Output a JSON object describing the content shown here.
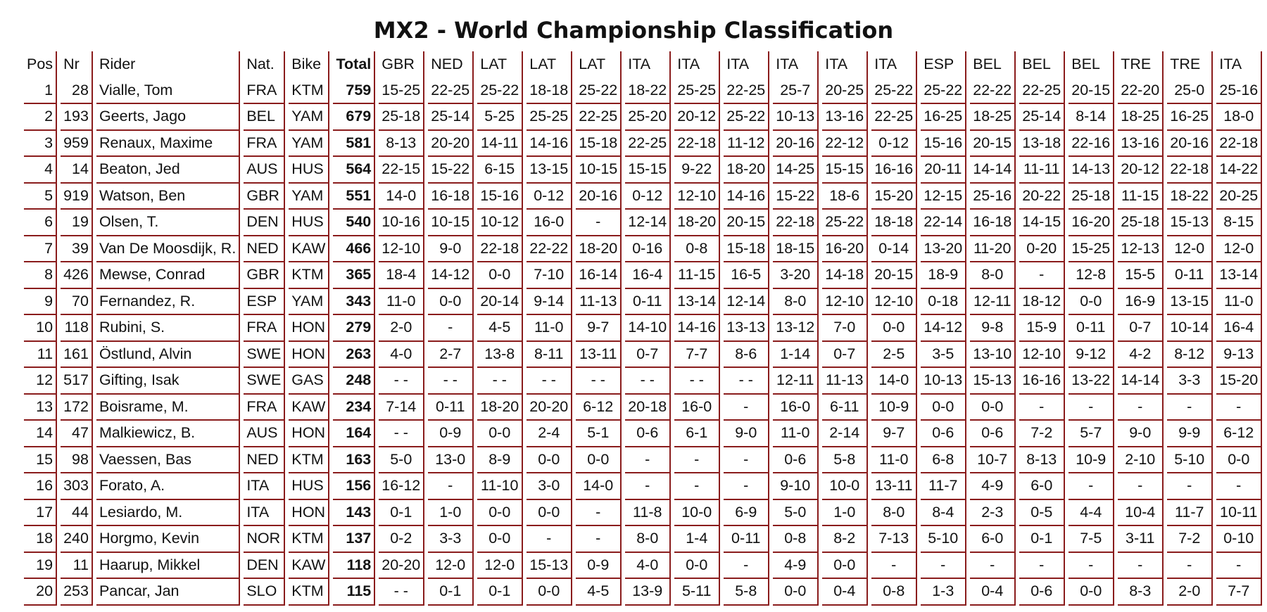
{
  "title": "MX2 - World Championship Classification",
  "accent_color": "#8a1c1c",
  "columns": [
    "Pos",
    "Nr",
    "Rider",
    "Nat.",
    "Bike",
    "Total",
    "GBR",
    "NED",
    "LAT",
    "LAT",
    "LAT",
    "ITA",
    "ITA",
    "ITA",
    "ITA",
    "ITA",
    "ITA",
    "ESP",
    "BEL",
    "BEL",
    "BEL",
    "TRE",
    "TRE",
    "ITA"
  ],
  "rows": [
    {
      "pos": "1",
      "nr": "28",
      "rider": "Vialle, Tom",
      "nat": "FRA",
      "bike": "KTM",
      "total": "759",
      "results": [
        "15-25",
        "22-25",
        "25-22",
        "18-18",
        "25-22",
        "18-22",
        "25-25",
        "22-25",
        "25-7",
        "20-25",
        "25-22",
        "25-22",
        "22-22",
        "22-25",
        "20-15",
        "22-20",
        "25-0",
        "25-16"
      ]
    },
    {
      "pos": "2",
      "nr": "193",
      "rider": "Geerts, Jago",
      "nat": "BEL",
      "bike": "YAM",
      "total": "679",
      "results": [
        "25-18",
        "25-14",
        "5-25",
        "25-25",
        "22-25",
        "25-20",
        "20-12",
        "25-22",
        "10-13",
        "13-16",
        "22-25",
        "16-25",
        "18-25",
        "25-14",
        "8-14",
        "18-25",
        "16-25",
        "18-0"
      ]
    },
    {
      "pos": "3",
      "nr": "959",
      "rider": "Renaux, Maxime",
      "nat": "FRA",
      "bike": "YAM",
      "total": "581",
      "results": [
        "8-13",
        "20-20",
        "14-11",
        "14-16",
        "15-18",
        "22-25",
        "22-18",
        "11-12",
        "20-16",
        "22-12",
        "0-12",
        "15-16",
        "20-15",
        "13-18",
        "22-16",
        "13-16",
        "20-16",
        "22-18"
      ]
    },
    {
      "pos": "4",
      "nr": "14",
      "rider": "Beaton, Jed",
      "nat": "AUS",
      "bike": "HUS",
      "total": "564",
      "results": [
        "22-15",
        "15-22",
        "6-15",
        "13-15",
        "10-15",
        "15-15",
        "9-22",
        "18-20",
        "14-25",
        "15-15",
        "16-16",
        "20-11",
        "14-14",
        "11-11",
        "14-13",
        "20-12",
        "22-18",
        "14-22"
      ]
    },
    {
      "pos": "5",
      "nr": "919",
      "rider": "Watson, Ben",
      "nat": "GBR",
      "bike": "YAM",
      "total": "551",
      "results": [
        "14-0",
        "16-18",
        "15-16",
        "0-12",
        "20-16",
        "0-12",
        "12-10",
        "14-16",
        "15-22",
        "18-6",
        "15-20",
        "12-15",
        "25-16",
        "20-22",
        "25-18",
        "11-15",
        "18-22",
        "20-25"
      ]
    },
    {
      "pos": "6",
      "nr": "19",
      "rider": "Olsen, T.",
      "nat": "DEN",
      "bike": "HUS",
      "total": "540",
      "results": [
        "10-16",
        "10-15",
        "10-12",
        "16-0",
        "-",
        "12-14",
        "18-20",
        "20-15",
        "22-18",
        "25-22",
        "18-18",
        "22-14",
        "16-18",
        "14-15",
        "16-20",
        "25-18",
        "15-13",
        "8-15"
      ]
    },
    {
      "pos": "7",
      "nr": "39",
      "rider": "Van De Moosdijk, R.",
      "nat": "NED",
      "bike": "KAW",
      "total": "466",
      "results": [
        "12-10",
        "9-0",
        "22-18",
        "22-22",
        "18-20",
        "0-16",
        "0-8",
        "15-18",
        "18-15",
        "16-20",
        "0-14",
        "13-20",
        "11-20",
        "0-20",
        "15-25",
        "12-13",
        "12-0",
        "12-0"
      ]
    },
    {
      "pos": "8",
      "nr": "426",
      "rider": "Mewse, Conrad",
      "nat": "GBR",
      "bike": "KTM",
      "total": "365",
      "results": [
        "18-4",
        "14-12",
        "0-0",
        "7-10",
        "16-14",
        "16-4",
        "11-15",
        "16-5",
        "3-20",
        "14-18",
        "20-15",
        "18-9",
        "8-0",
        "-",
        "12-8",
        "15-5",
        "0-11",
        "13-14"
      ]
    },
    {
      "pos": "9",
      "nr": "70",
      "rider": "Fernandez, R.",
      "nat": "ESP",
      "bike": "YAM",
      "total": "343",
      "results": [
        "11-0",
        "0-0",
        "20-14",
        "9-14",
        "11-13",
        "0-11",
        "13-14",
        "12-14",
        "8-0",
        "12-10",
        "12-10",
        "0-18",
        "12-11",
        "18-12",
        "0-0",
        "16-9",
        "13-15",
        "11-0"
      ]
    },
    {
      "pos": "10",
      "nr": "118",
      "rider": "Rubini, S.",
      "nat": "FRA",
      "bike": "HON",
      "total": "279",
      "results": [
        "2-0",
        "-",
        "4-5",
        "11-0",
        "9-7",
        "14-10",
        "14-16",
        "13-13",
        "13-12",
        "7-0",
        "0-0",
        "14-12",
        "9-8",
        "15-9",
        "0-11",
        "0-7",
        "10-14",
        "16-4"
      ]
    },
    {
      "pos": "11",
      "nr": "161",
      "rider": "Östlund, Alvin",
      "nat": "SWE",
      "bike": "HON",
      "total": "263",
      "results": [
        "4-0",
        "2-7",
        "13-8",
        "8-11",
        "13-11",
        "0-7",
        "7-7",
        "8-6",
        "1-14",
        "0-7",
        "2-5",
        "3-5",
        "13-10",
        "12-10",
        "9-12",
        "4-2",
        "8-12",
        "9-13"
      ]
    },
    {
      "pos": "12",
      "nr": "517",
      "rider": "Gifting, Isak",
      "nat": "SWE",
      "bike": "GAS",
      "total": "248",
      "results": [
        "- -",
        "- -",
        "- -",
        "- -",
        "- -",
        "- -",
        "- -",
        "- -",
        "12-11",
        "11-13",
        "14-0",
        "10-13",
        "15-13",
        "16-16",
        "13-22",
        "14-14",
        "3-3",
        "15-20"
      ]
    },
    {
      "pos": "13",
      "nr": "172",
      "rider": "Boisrame, M.",
      "nat": "FRA",
      "bike": "KAW",
      "total": "234",
      "results": [
        "7-14",
        "0-11",
        "18-20",
        "20-20",
        "6-12",
        "20-18",
        "16-0",
        "-",
        "16-0",
        "6-11",
        "10-9",
        "0-0",
        "0-0",
        "-",
        "-",
        "-",
        "-",
        "-"
      ]
    },
    {
      "pos": "14",
      "nr": "47",
      "rider": "Malkiewicz, B.",
      "nat": "AUS",
      "bike": "HON",
      "total": "164",
      "results": [
        "- -",
        "0-9",
        "0-0",
        "2-4",
        "5-1",
        "0-6",
        "6-1",
        "9-0",
        "11-0",
        "2-14",
        "9-7",
        "0-6",
        "0-6",
        "7-2",
        "5-7",
        "9-0",
        "9-9",
        "6-12"
      ]
    },
    {
      "pos": "15",
      "nr": "98",
      "rider": "Vaessen, Bas",
      "nat": "NED",
      "bike": "KTM",
      "total": "163",
      "results": [
        "5-0",
        "13-0",
        "8-9",
        "0-0",
        "0-0",
        "-",
        "-",
        "-",
        "0-6",
        "5-8",
        "11-0",
        "6-8",
        "10-7",
        "8-13",
        "10-9",
        "2-10",
        "5-10",
        "0-0"
      ]
    },
    {
      "pos": "16",
      "nr": "303",
      "rider": "Forato, A.",
      "nat": "ITA",
      "bike": "HUS",
      "total": "156",
      "results": [
        "16-12",
        "-",
        "11-10",
        "3-0",
        "14-0",
        "-",
        "-",
        "-",
        "9-10",
        "10-0",
        "13-11",
        "11-7",
        "4-9",
        "6-0",
        "-",
        "-",
        "-",
        "-"
      ]
    },
    {
      "pos": "17",
      "nr": "44",
      "rider": "Lesiardo, M.",
      "nat": "ITA",
      "bike": "HON",
      "total": "143",
      "results": [
        "0-1",
        "1-0",
        "0-0",
        "0-0",
        "-",
        "11-8",
        "10-0",
        "6-9",
        "5-0",
        "1-0",
        "8-0",
        "8-4",
        "2-3",
        "0-5",
        "4-4",
        "10-4",
        "11-7",
        "10-11"
      ]
    },
    {
      "pos": "18",
      "nr": "240",
      "rider": "Horgmo, Kevin",
      "nat": "NOR",
      "bike": "KTM",
      "total": "137",
      "results": [
        "0-2",
        "3-3",
        "0-0",
        "-",
        "-",
        "8-0",
        "1-4",
        "0-11",
        "0-8",
        "8-2",
        "7-13",
        "5-10",
        "6-0",
        "0-1",
        "7-5",
        "3-11",
        "7-2",
        "0-10"
      ]
    },
    {
      "pos": "19",
      "nr": "11",
      "rider": "Haarup, Mikkel",
      "nat": "DEN",
      "bike": "KAW",
      "total": "118",
      "results": [
        "20-20",
        "12-0",
        "12-0",
        "15-13",
        "0-9",
        "4-0",
        "0-0",
        "-",
        "4-9",
        "0-0",
        "-",
        "-",
        "-",
        "-",
        "-",
        "-",
        "-",
        "-"
      ]
    },
    {
      "pos": "20",
      "nr": "253",
      "rider": "Pancar, Jan",
      "nat": "SLO",
      "bike": "KTM",
      "total": "115",
      "results": [
        "- -",
        "0-1",
        "0-1",
        "0-0",
        "4-5",
        "13-9",
        "5-11",
        "5-8",
        "0-0",
        "0-4",
        "0-8",
        "1-3",
        "0-4",
        "0-6",
        "0-0",
        "8-3",
        "2-0",
        "7-7"
      ]
    }
  ]
}
